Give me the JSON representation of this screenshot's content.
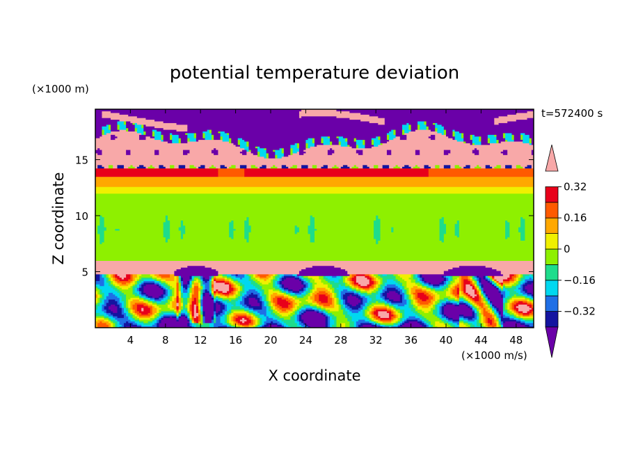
{
  "chart_data": {
    "type": "heatmap",
    "title": "potential temperature deviation",
    "xlabel": "X coordinate",
    "ylabel": "Z coordinate",
    "x_unit": "(×1000 m/s)",
    "y_unit": "(×1000 m)",
    "time_label": "t=572400 s",
    "xlim": [
      0,
      50
    ],
    "ylim": [
      0,
      19.5
    ],
    "x_ticks": [
      4,
      8,
      12,
      16,
      20,
      24,
      28,
      32,
      36,
      40,
      44,
      48
    ],
    "y_ticks": [
      5,
      10,
      15
    ],
    "colorbar": {
      "levels": [
        -0.4,
        -0.32,
        -0.24,
        -0.16,
        -0.08,
        0,
        0.08,
        0.16,
        0.24,
        0.32,
        0.4
      ],
      "labels": [
        "0.32",
        "0.16",
        "0",
        "−0.16",
        "−0.32"
      ],
      "label_values": [
        0.32,
        0.16,
        0,
        -0.16,
        -0.32
      ],
      "colors": [
        "#6a00a8",
        "#1414a0",
        "#1f6fe6",
        "#00d8f0",
        "#1edc8c",
        "#8ef000",
        "#f0f000",
        "#ffa800",
        "#ff5a00",
        "#e8001a",
        "#f8a8a8"
      ]
    },
    "bands": [
      {
        "z": [
          0,
          4.8
        ],
        "value": "mixed -0.4 to 0.4"
      },
      {
        "z": [
          4.8,
          6
        ],
        "value": 0.4,
        "note": "with purple domes near x=9-14, 23-29, 39-46"
      },
      {
        "z": [
          6,
          12
        ],
        "value": 0.04
      },
      {
        "z": [
          12,
          13.5
        ],
        "value": 0.16
      },
      {
        "z": [
          13.5,
          14.5
        ],
        "value": 0.32
      },
      {
        "z": [
          14.5,
          17.5
        ],
        "value": 0.4
      },
      {
        "z": [
          17.5,
          19.5
        ],
        "value": -0.4
      }
    ]
  }
}
